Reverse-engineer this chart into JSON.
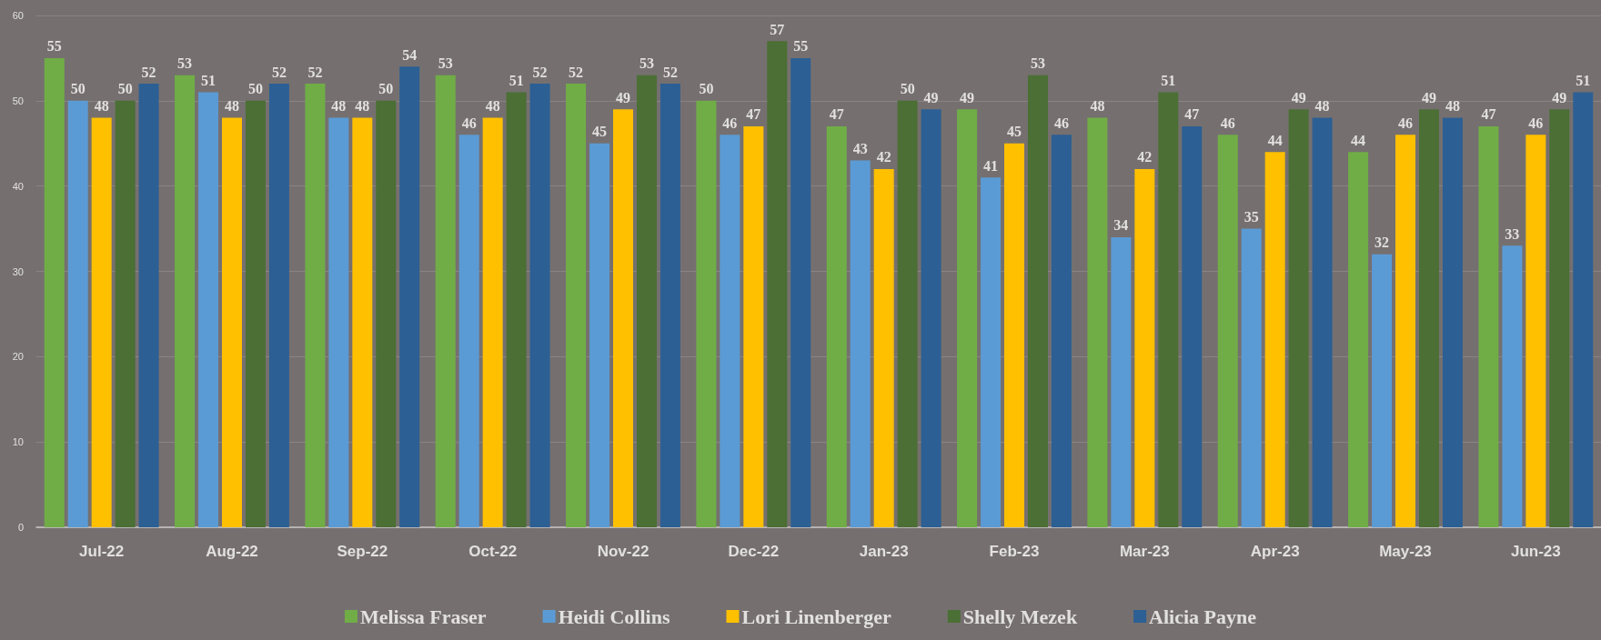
{
  "chart_data": {
    "type": "bar",
    "categories": [
      "Jul-22",
      "Aug-22",
      "Sep-22",
      "Oct-22",
      "Nov-22",
      "Dec-22",
      "Jan-23",
      "Feb-23",
      "Mar-23",
      "Apr-23",
      "May-23",
      "Jun-23"
    ],
    "series": [
      {
        "name": "Melissa Fraser",
        "color": "#70ad47",
        "values": [
          55,
          53,
          52,
          53,
          52,
          50,
          47,
          49,
          48,
          46,
          44,
          47
        ]
      },
      {
        "name": "Heidi Collins",
        "color": "#5b9bd5",
        "values": [
          50,
          51,
          48,
          46,
          45,
          46,
          43,
          41,
          34,
          35,
          32,
          33
        ]
      },
      {
        "name": "Lori Linenberger",
        "color": "#ffc000",
        "values": [
          48,
          48,
          48,
          48,
          49,
          47,
          42,
          45,
          42,
          44,
          46,
          46
        ]
      },
      {
        "name": "Shelly Mezek",
        "color": "#4b6f34",
        "values": [
          50,
          50,
          50,
          51,
          53,
          57,
          50,
          53,
          51,
          49,
          49,
          49
        ]
      },
      {
        "name": "Alicia Payne",
        "color": "#2c5f94",
        "values": [
          52,
          52,
          54,
          52,
          52,
          55,
          49,
          46,
          47,
          48,
          48,
          51
        ]
      }
    ],
    "ylim": [
      0,
      60
    ],
    "yticks": [
      0,
      10,
      20,
      30,
      40,
      50,
      60
    ],
    "grid": "y",
    "legend": "bottom",
    "data_labels": true
  }
}
